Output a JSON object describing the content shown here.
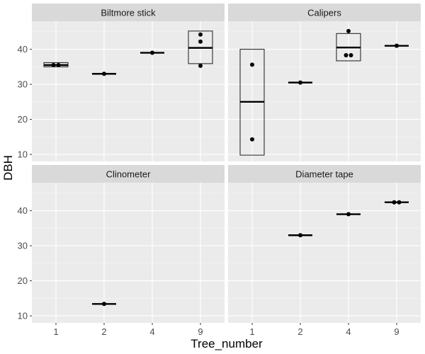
{
  "chart_data": {
    "type": "boxplot",
    "xlabel": "Tree_number",
    "ylabel": "DBH",
    "x_categories": [
      "1",
      "2",
      "4",
      "9"
    ],
    "y_range": [
      8,
      48
    ],
    "y_ticks": [
      10,
      20,
      30,
      40
    ],
    "grid": true,
    "facets": [
      {
        "label": "Biltmore stick",
        "boxes": [
          {
            "x": "1",
            "q1": 35.0,
            "median": 35.5,
            "q3": 36.2,
            "points": [
              35.5,
              35.5
            ]
          },
          {
            "x": "2",
            "q1": 33.0,
            "median": 33.0,
            "q3": 33.0,
            "points": [
              33.0
            ]
          },
          {
            "x": "4",
            "q1": 39.0,
            "median": 39.0,
            "q3": 39.0,
            "points": [
              39.0
            ]
          },
          {
            "x": "9",
            "q1": 35.9,
            "median": 40.4,
            "q3": 45.2,
            "points": [
              35.3,
              42.2,
              44.2
            ]
          }
        ]
      },
      {
        "label": "Calipers",
        "boxes": [
          {
            "x": "1",
            "q1": 9.8,
            "median": 25.0,
            "q3": 40.0,
            "points": [
              35.6,
              14.3
            ]
          },
          {
            "x": "2",
            "q1": 30.5,
            "median": 30.5,
            "q3": 30.5,
            "points": [
              30.5
            ]
          },
          {
            "x": "4",
            "q1": 36.7,
            "median": 40.5,
            "q3": 44.5,
            "points": [
              45.2,
              38.3,
              38.3
            ]
          },
          {
            "x": "9",
            "q1": 41.0,
            "median": 41.0,
            "q3": 41.0,
            "points": [
              41.0
            ]
          }
        ]
      },
      {
        "label": "Clinometer",
        "boxes": [
          {
            "x": "2",
            "q1": 13.4,
            "median": 13.4,
            "q3": 13.4,
            "points": [
              13.4
            ]
          }
        ]
      },
      {
        "label": "Diameter tape",
        "boxes": [
          {
            "x": "2",
            "q1": 33.0,
            "median": 33.0,
            "q3": 33.0,
            "points": [
              33.0
            ]
          },
          {
            "x": "4",
            "q1": 39.0,
            "median": 39.0,
            "q3": 39.0,
            "points": [
              39.0
            ]
          },
          {
            "x": "9",
            "q1": 42.4,
            "median": 42.4,
            "q3": 42.4,
            "points": [
              42.4,
              42.4
            ]
          }
        ]
      }
    ]
  }
}
